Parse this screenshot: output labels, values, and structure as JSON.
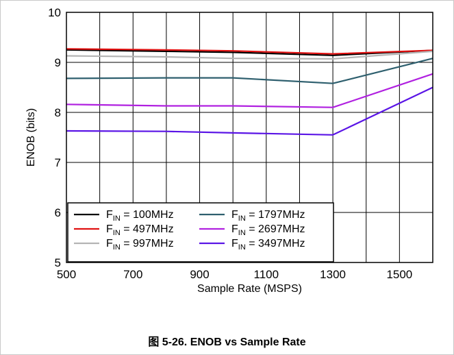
{
  "chart_data": {
    "type": "line",
    "title": "",
    "xlabel": "Sample Rate (MSPS)",
    "ylabel": "ENOB (bits)",
    "xlim": [
      500,
      1600
    ],
    "ylim": [
      5,
      10
    ],
    "x_ticks": [
      500,
      700,
      900,
      1100,
      1300,
      1500
    ],
    "y_ticks": [
      5,
      6,
      7,
      8,
      9,
      10
    ],
    "x_grid": [
      500,
      600,
      700,
      800,
      900,
      1000,
      1100,
      1200,
      1300,
      1400,
      1500,
      1600
    ],
    "grid": true,
    "legend_placement": "bottom-left",
    "series": [
      {
        "name_main": "F",
        "name_sub": "IN",
        "name_rest": " = 100MHz",
        "color": "#000000",
        "points": [
          [
            500,
            9.25
          ],
          [
            800,
            9.22
          ],
          [
            1000,
            9.2
          ],
          [
            1300,
            9.14
          ],
          [
            1600,
            9.24
          ]
        ]
      },
      {
        "name_main": "F",
        "name_sub": "IN",
        "name_rest": " = 497MHz",
        "color": "#e01010",
        "points": [
          [
            500,
            9.27
          ],
          [
            800,
            9.25
          ],
          [
            1000,
            9.23
          ],
          [
            1300,
            9.17
          ],
          [
            1600,
            9.24
          ]
        ]
      },
      {
        "name_main": "F",
        "name_sub": "IN",
        "name_rest": " = 997MHz",
        "color": "#b4b4b4",
        "points": [
          [
            500,
            9.13
          ],
          [
            800,
            9.11
          ],
          [
            1000,
            9.08
          ],
          [
            1300,
            9.07
          ],
          [
            1600,
            9.22
          ]
        ]
      },
      {
        "name_main": "F",
        "name_sub": "IN",
        "name_rest": " = 1797MHz",
        "color": "#2e5f6e",
        "points": [
          [
            500,
            8.68
          ],
          [
            800,
            8.69
          ],
          [
            1000,
            8.69
          ],
          [
            1300,
            8.58
          ],
          [
            1600,
            9.08
          ]
        ]
      },
      {
        "name_main": "F",
        "name_sub": "IN",
        "name_rest": " = 2697MHz",
        "color": "#b020e0",
        "points": [
          [
            500,
            8.16
          ],
          [
            800,
            8.13
          ],
          [
            1000,
            8.13
          ],
          [
            1300,
            8.1
          ],
          [
            1600,
            8.77
          ]
        ]
      },
      {
        "name_main": "F",
        "name_sub": "IN",
        "name_rest": " = 3497MHz",
        "color": "#5a14e6",
        "points": [
          [
            500,
            7.63
          ],
          [
            800,
            7.62
          ],
          [
            1000,
            7.59
          ],
          [
            1300,
            7.55
          ],
          [
            1600,
            8.5
          ]
        ]
      }
    ]
  },
  "caption": "图 5-26. ENOB vs Sample Rate"
}
